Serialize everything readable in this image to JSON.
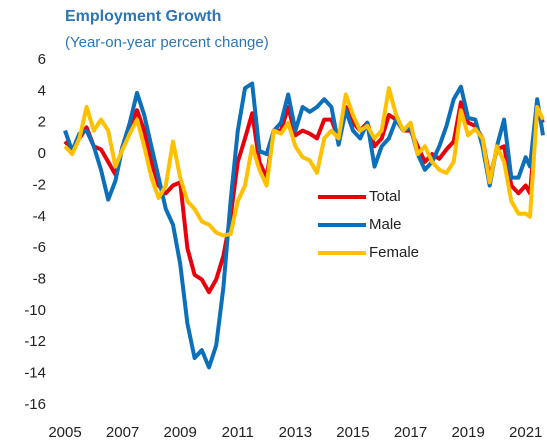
{
  "chart_data": {
    "type": "line",
    "title": "Employment Growth",
    "subtitle": "(Year-on-year percent change)",
    "x": [
      2005,
      2005.25,
      2005.5,
      2005.75,
      2006,
      2006.25,
      2006.5,
      2006.75,
      2007,
      2007.25,
      2007.5,
      2007.75,
      2008,
      2008.25,
      2008.5,
      2008.75,
      2009,
      2009.25,
      2009.5,
      2009.75,
      2010,
      2010.25,
      2010.5,
      2010.75,
      2011,
      2011.25,
      2011.5,
      2011.75,
      2012,
      2012.25,
      2012.5,
      2012.75,
      2013,
      2013.25,
      2013.5,
      2013.75,
      2014,
      2014.25,
      2014.5,
      2014.75,
      2015,
      2015.25,
      2015.5,
      2015.75,
      2016,
      2016.25,
      2016.5,
      2016.75,
      2017,
      2017.25,
      2017.5,
      2017.75,
      2018,
      2018.25,
      2018.5,
      2018.75,
      2019,
      2019.25,
      2019.5,
      2019.75,
      2020,
      2020.25,
      2020.5,
      2020.75,
      2021,
      2021.15,
      2021.4,
      2021.6
    ],
    "series": [
      {
        "name": "Total",
        "color": "#e8000b",
        "values": [
          0.8,
          0.3,
          1.0,
          1.7,
          0.5,
          0.3,
          -0.5,
          -1.3,
          0.5,
          1.5,
          2.8,
          1.5,
          -0.5,
          -2.0,
          -2.5,
          -2.0,
          -1.8,
          -6.0,
          -7.7,
          -8.0,
          -8.8,
          -8.0,
          -6.5,
          -4.0,
          -0.5,
          1.0,
          2.6,
          -0.5,
          -1.5,
          1.5,
          1.5,
          3.0,
          1.2,
          1.5,
          1.3,
          1.0,
          2.2,
          2.2,
          1.0,
          3.0,
          2.0,
          1.5,
          2.0,
          0.5,
          1.0,
          2.5,
          2.2,
          1.5,
          1.5,
          0.5,
          -0.5,
          0.0,
          -0.3,
          0.3,
          0.8,
          3.3,
          2.0,
          1.8,
          1.0,
          -1.5,
          0.3,
          0.5,
          -2.0,
          -2.5,
          -2.0,
          -2.5,
          2.8,
          2.0
        ]
      },
      {
        "name": "Male",
        "color": "#0b6fba",
        "values": [
          1.5,
          0.2,
          1.3,
          1.5,
          0.5,
          -1.0,
          -2.9,
          -1.7,
          0.5,
          2.0,
          3.9,
          2.5,
          0.5,
          -1.5,
          -3.5,
          -4.5,
          -7.0,
          -10.8,
          -13.0,
          -12.5,
          -13.6,
          -12.2,
          -8.5,
          -3.0,
          1.5,
          4.2,
          4.5,
          0.2,
          0.0,
          1.5,
          2.0,
          3.8,
          1.5,
          3.0,
          2.7,
          3.0,
          3.5,
          3.0,
          0.6,
          2.8,
          1.5,
          1.0,
          2.0,
          -0.8,
          0.5,
          1.0,
          2.2,
          1.5,
          1.7,
          0.0,
          -1.0,
          -0.5,
          0.5,
          1.8,
          3.5,
          4.3,
          2.3,
          2.2,
          0.5,
          -2.0,
          0.5,
          2.2,
          -1.5,
          -1.5,
          -0.2,
          -0.8,
          3.5,
          1.2
        ]
      },
      {
        "name": "Female",
        "color": "#ffc000",
        "values": [
          0.5,
          0.0,
          1.0,
          3.0,
          1.5,
          2.2,
          1.5,
          -0.8,
          0.3,
          1.3,
          2.2,
          0.5,
          -1.5,
          -2.8,
          -2.0,
          0.8,
          -1.5,
          -3.0,
          -3.5,
          -4.3,
          -4.5,
          -5.0,
          -5.2,
          -5.1,
          -3.0,
          -2.0,
          0.5,
          -1.0,
          -2.0,
          1.5,
          1.3,
          2.0,
          0.5,
          -0.2,
          -0.4,
          -1.2,
          1.0,
          1.5,
          1.0,
          3.8,
          2.5,
          1.5,
          1.8,
          1.0,
          1.5,
          4.2,
          2.5,
          1.5,
          2.0,
          0.0,
          0.5,
          -0.5,
          -1.0,
          -1.2,
          -0.5,
          2.8,
          1.2,
          1.6,
          1.0,
          -1.8,
          0.5,
          -0.5,
          -3.0,
          -3.8,
          -3.8,
          -4.0,
          3.0,
          2.2
        ]
      }
    ],
    "xlim": [
      2005,
      2021.6
    ],
    "xticks": [
      2005,
      2007,
      2009,
      2011,
      2013,
      2015,
      2017,
      2019,
      2021
    ],
    "ylim": [
      -16,
      6
    ],
    "yticks": [
      -16,
      -14,
      -12,
      -10,
      -8,
      -6,
      -4,
      -2,
      0,
      2,
      4,
      6
    ],
    "grid": false
  }
}
